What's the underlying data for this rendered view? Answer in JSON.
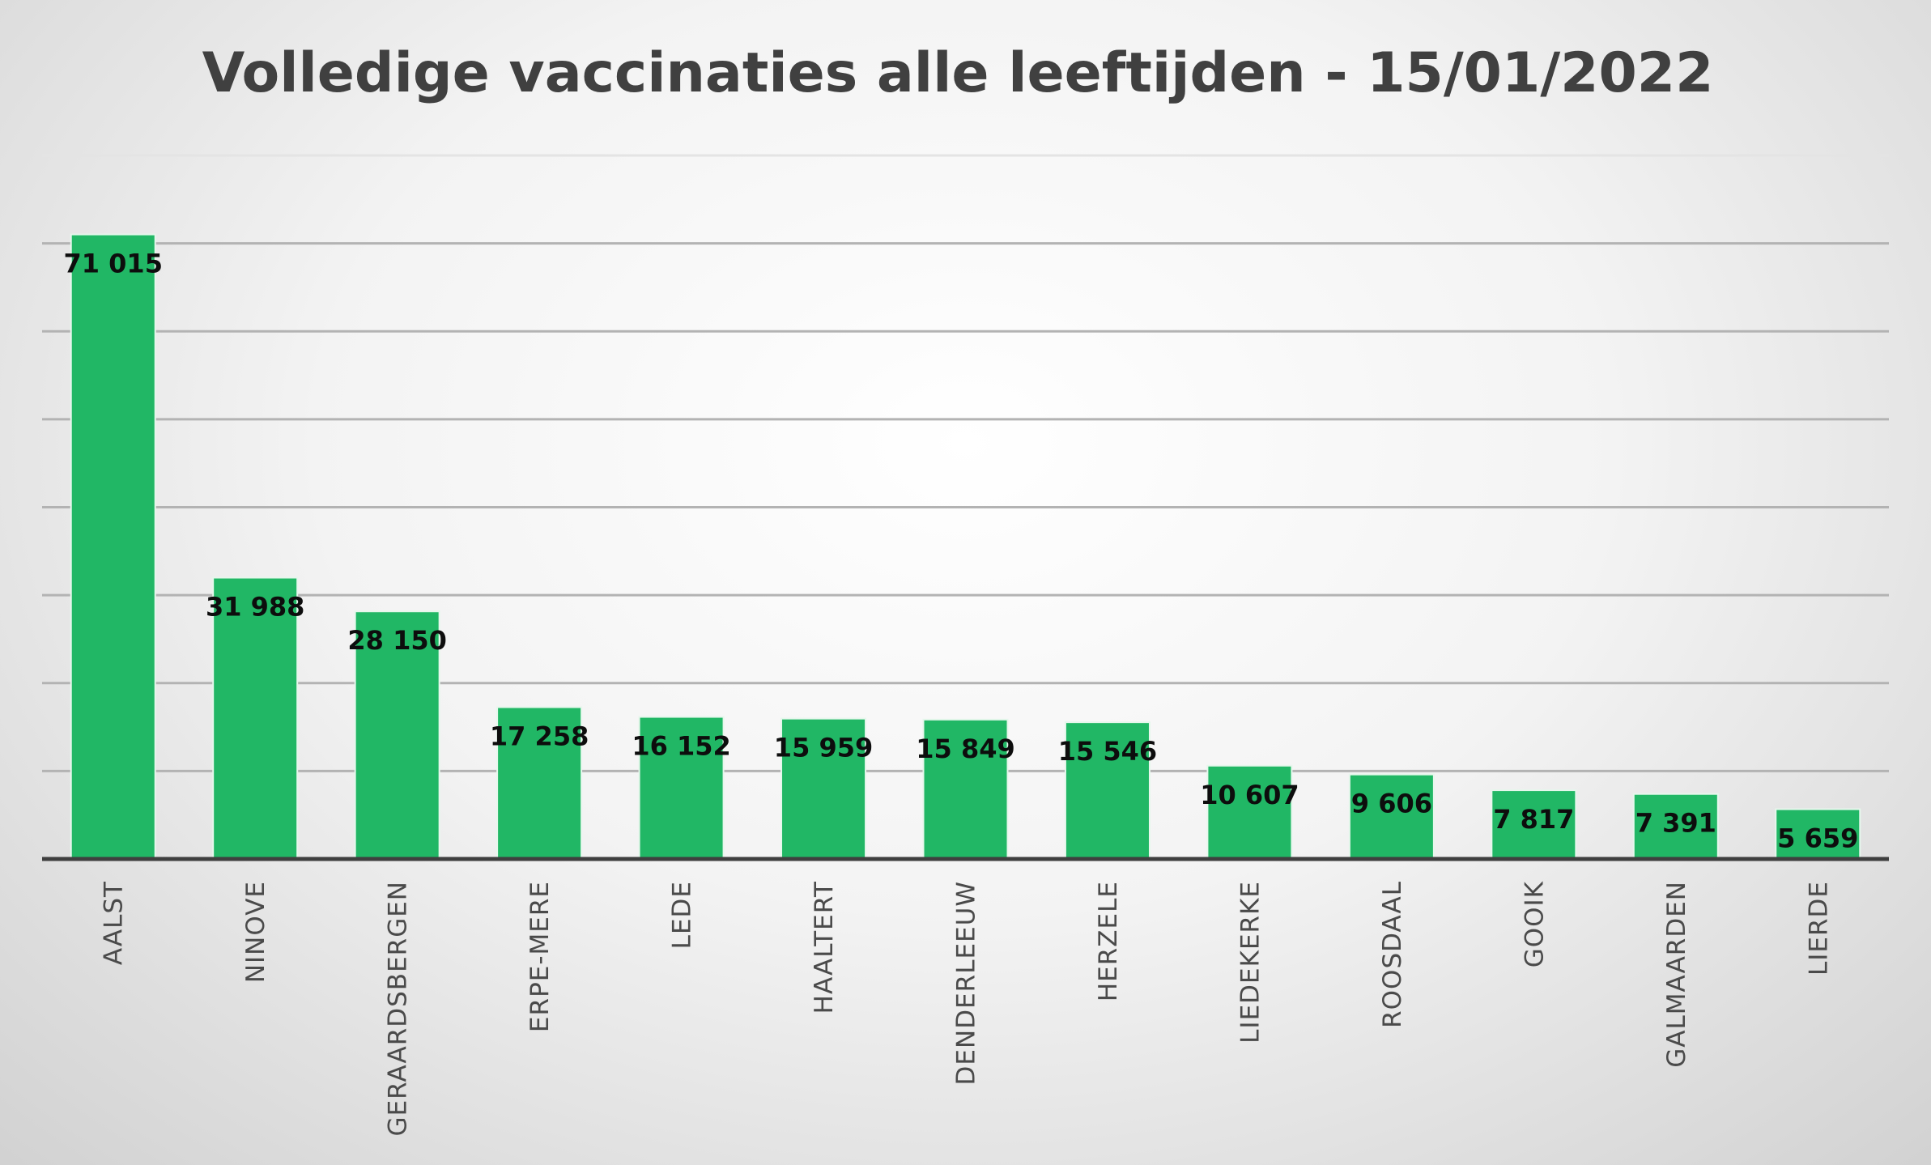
{
  "chart_data": {
    "type": "bar",
    "title": "Volledige vaccinaties alle leeftijden - 15/01/2022",
    "xlabel": "",
    "ylabel": "",
    "categories": [
      "AALST",
      "NINOVE",
      "GERAARDSBERGEN",
      "ERPE-MERE",
      "LEDE",
      "HAALTERT",
      "DENDERLEEUW",
      "HERZELE",
      "LIEDEKERKE",
      "ROOSDAAL",
      "GOOIK",
      "GALMAARDEN",
      "LIERDE"
    ],
    "values": [
      71015,
      31988,
      28150,
      17258,
      16152,
      15959,
      15849,
      15546,
      10607,
      9606,
      7817,
      7391,
      5659
    ],
    "data_labels": [
      "71 015",
      "31 988",
      "28 150",
      "17 258",
      "16 152",
      "15 959",
      "15 849",
      "15 546",
      "10 607",
      "9 606",
      "7 817",
      "7 391",
      "5 659"
    ],
    "ylim": [
      0,
      80000
    ],
    "gridline_step": 10000,
    "grid": true,
    "legend": "none",
    "colors": {
      "bar": "#21b765",
      "title": "#404040",
      "axis": "#3f3f3f"
    }
  }
}
